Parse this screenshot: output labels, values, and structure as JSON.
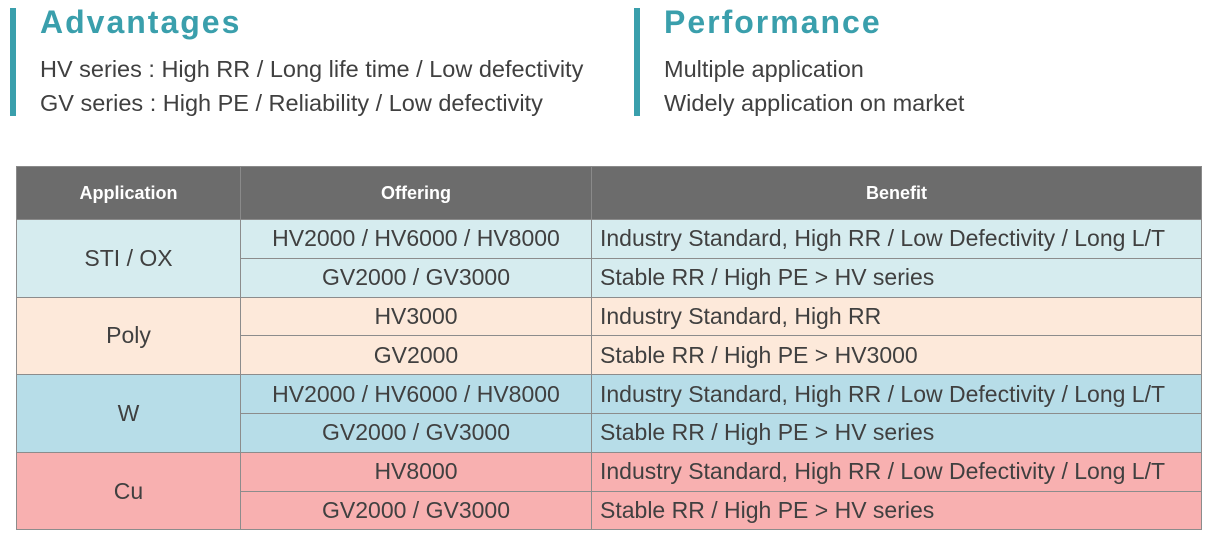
{
  "advantages": {
    "title": "Advantages",
    "lines": [
      "HV series : High RR / Long life time / Low defectivity",
      "GV series : High PE / Reliability / Low defectivity"
    ]
  },
  "performance": {
    "title": "Performance",
    "lines": [
      "Multiple application",
      "Widely application on market"
    ]
  },
  "table": {
    "headers": [
      "Application",
      "Offering",
      "Benefit"
    ],
    "groups": [
      {
        "application": "STI / OX",
        "rows": [
          {
            "offering": "HV2000 / HV6000  / HV8000",
            "benefit": "Industry Standard, High RR /  Low Defectivity / Long L/T"
          },
          {
            "offering": "GV2000 / GV3000",
            "benefit": "Stable RR / High PE > HV series"
          }
        ]
      },
      {
        "application": "Poly",
        "rows": [
          {
            "offering": "HV3000",
            "benefit": "Industry Standard, High RR"
          },
          {
            "offering": "GV2000",
            "benefit": "Stable RR / High PE > HV3000"
          }
        ]
      },
      {
        "application": "W",
        "rows": [
          {
            "offering": "HV2000 / HV6000 / HV8000",
            "benefit": "Industry Standard, High RR /  Low Defectivity / Long L/T"
          },
          {
            "offering": "GV2000 / GV3000",
            "benefit": "Stable RR / High PE > HV series"
          }
        ]
      },
      {
        "application": "Cu",
        "rows": [
          {
            "offering": "HV8000",
            "benefit": "Industry Standard, High RR /  Low Defectivity / Long L/T"
          },
          {
            "offering": "GV2000 / GV3000",
            "benefit": "Stable RR /  High PE > HV series"
          }
        ]
      }
    ]
  },
  "colors": {
    "accent": "#3a9fac",
    "header_bg": "#6c6c6c",
    "sti_bg": "#d6ecef",
    "poly_bg": "#fde9da",
    "w_bg": "#b7dde8",
    "cu_bg": "#f8b0b0"
  }
}
